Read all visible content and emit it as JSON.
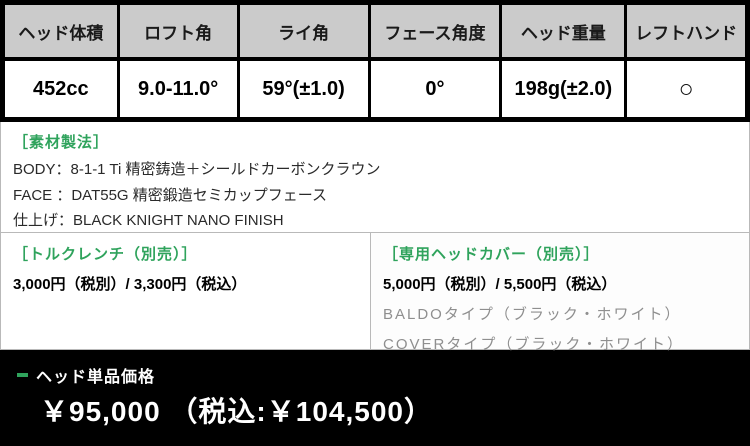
{
  "spec_table": {
    "columns": [
      {
        "header": "ヘッド体積",
        "value": "452cc"
      },
      {
        "header": "ロフト角",
        "value": "9.0-11.0°"
      },
      {
        "header": "ライ角",
        "value": "59°(±1.0)"
      },
      {
        "header": "フェース角度",
        "value": "0°"
      },
      {
        "header": "ヘッド重量",
        "value": "198g(±2.0)"
      },
      {
        "header": "レフトハンド",
        "value": "○"
      }
    ]
  },
  "materials": {
    "heading": "［素材製法］",
    "lines": [
      "BODY：8-1-1 Ti 精密鋳造＋シールドカーボンクラウン",
      "FACE ：DAT55G 精密鍛造セミカップフェース",
      "仕上げ：BLACK KNIGHT NANO FINISH"
    ]
  },
  "torque_wrench": {
    "heading": "［トルクレンチ（別売）］",
    "price": "3,000円（税別）/ 3,300円（税込）"
  },
  "head_cover": {
    "heading": "［専用ヘッドカバー（別売）］",
    "price": "5,000円（税別）/ 5,500円（税込）",
    "options": [
      "BALDOタイプ（ブラック・ホワイト）",
      "COVERタイプ（ブラック・ホワイト）"
    ]
  },
  "price_bar": {
    "label": "ヘッド単品価格",
    "price": "￥95,000 （税込:￥104,500）"
  },
  "colors": {
    "accent_green": "#2fa35c",
    "header_bg": "#cbcbcb",
    "bar_bg": "#000000",
    "muted_text": "#8f8f8f"
  }
}
